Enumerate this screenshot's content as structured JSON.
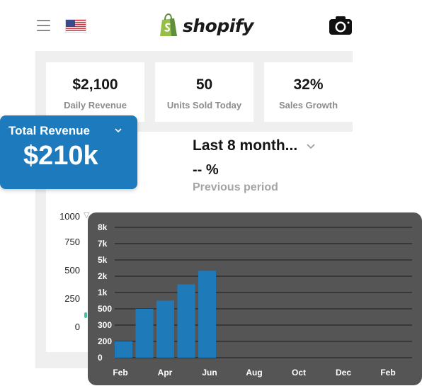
{
  "topbar": {
    "menu_icon": "hamburger-menu-icon",
    "flag_icon": "us-flag-icon",
    "brand_name": "shopify",
    "camera_icon": "camera-icon"
  },
  "kpis": [
    {
      "value": "$2,100",
      "label": "Daily Revenue"
    },
    {
      "value": "50",
      "label": "Units Sold Today"
    },
    {
      "value": "32%",
      "label": "Sales Growth"
    }
  ],
  "revenue_card": {
    "title": "Total Revenue",
    "value": "$210k",
    "dropdown_icon": "chevron-down-icon",
    "color": "#1d7bbd"
  },
  "period": {
    "label": "Last 8 month...",
    "change": "-- %",
    "compare_label": "Previous period",
    "dropdown_icon": "chevron-down-icon"
  },
  "background_chart": {
    "y_ticks": [
      "1000",
      "750",
      "500",
      "250",
      "0"
    ]
  },
  "chart_data": {
    "type": "bar",
    "categories": [
      "Feb",
      "Apr",
      "Jun",
      "Aug",
      "Oct",
      "Dec",
      "Feb"
    ],
    "x_ticks": [
      "Feb",
      "Apr",
      "Jun",
      "Aug",
      "Oct",
      "Dec",
      "Feb"
    ],
    "y_ticks": [
      "0",
      "200",
      "300",
      "500",
      "1k",
      "2k",
      "5k",
      "7k",
      "8k"
    ],
    "bars": [
      {
        "tick": 0,
        "value": 200
      },
      {
        "tick": 1,
        "value": 500
      },
      {
        "tick": 2,
        "value": 750
      },
      {
        "tick": 3,
        "value": 1500
      },
      {
        "tick": 4,
        "value": 3000
      }
    ],
    "bar_color": "#1f7ab9",
    "background": "#555555",
    "grid": true
  }
}
